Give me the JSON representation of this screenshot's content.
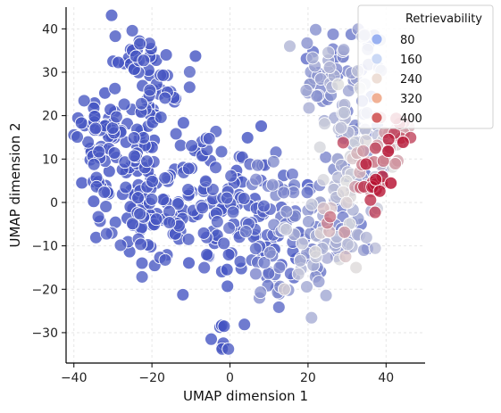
{
  "chart_data": {
    "type": "scatter",
    "xlabel": "UMAP dimension 1",
    "ylabel": "UMAP dimension 2",
    "xlim": [
      -42,
      50
    ],
    "ylim": [
      -37,
      45
    ],
    "x_ticks": [
      -40,
      -20,
      0,
      20,
      40
    ],
    "y_ticks": [
      -30,
      -20,
      -10,
      0,
      10,
      20,
      30,
      40
    ],
    "x_tick_labels": [
      "−40",
      "−20",
      "0",
      "20",
      "40"
    ],
    "y_tick_labels": [
      "−30",
      "−20",
      "−10",
      "0",
      "10",
      "20",
      "30",
      "40"
    ],
    "grid": true,
    "legend": {
      "title": "Retrievability",
      "placement": "top-right",
      "entries": [
        {
          "label": "80",
          "value": 80,
          "color": "#8fa9f0"
        },
        {
          "label": "160",
          "value": 160,
          "color": "#c5d5f5"
        },
        {
          "label": "240",
          "value": 240,
          "color": "#ecdcd3"
        },
        {
          "label": "320",
          "value": 320,
          "color": "#f0a88a"
        },
        {
          "label": "400",
          "value": 400,
          "color": "#d05454"
        }
      ]
    },
    "colormap": {
      "name": "coolwarm",
      "low_color": "#3b4cc0",
      "mid_color": "#dddddd",
      "high_color": "#b40426",
      "range": [
        0,
        480
      ]
    },
    "clusters": [
      {
        "cx": -34,
        "cy": 16,
        "sx": 3.0,
        "sy": 6.0,
        "n": 40,
        "r_mean": 10,
        "r_sd": 6
      },
      {
        "cx": -26,
        "cy": 10,
        "sx": 5.5,
        "sy": 6.5,
        "n": 70,
        "r_mean": 12,
        "r_sd": 8
      },
      {
        "cx": -24,
        "cy": 33,
        "sx": 3.0,
        "sy": 4.5,
        "n": 28,
        "r_mean": 10,
        "r_sd": 6
      },
      {
        "cx": -17,
        "cy": 25,
        "sx": 4.0,
        "sy": 5.0,
        "n": 32,
        "r_mean": 14,
        "r_sd": 8
      },
      {
        "cx": -20,
        "cy": -4,
        "sx": 6.5,
        "sy": 5.0,
        "n": 75,
        "r_mean": 14,
        "r_sd": 8
      },
      {
        "cx": -10,
        "cy": 7,
        "sx": 4.0,
        "sy": 6.0,
        "n": 30,
        "r_mean": 16,
        "r_sd": 9
      },
      {
        "cx": -3,
        "cy": -6,
        "sx": 4.0,
        "sy": 6.0,
        "n": 35,
        "r_mean": 18,
        "r_sd": 10
      },
      {
        "cx": 3,
        "cy": 8,
        "sx": 4.5,
        "sy": 5.0,
        "n": 28,
        "r_mean": 20,
        "r_sd": 12
      },
      {
        "cx": 6,
        "cy": -8,
        "sx": 4.0,
        "sy": 5.0,
        "n": 30,
        "r_mean": 30,
        "r_sd": 16
      },
      {
        "cx": 14,
        "cy": -5,
        "sx": 4.0,
        "sy": 5.5,
        "n": 26,
        "r_mean": 55,
        "r_sd": 30
      },
      {
        "cx": 13,
        "cy": 4,
        "sx": 3.5,
        "sy": 4.0,
        "n": 14,
        "r_mean": 70,
        "r_sd": 30
      },
      {
        "cx": 11,
        "cy": -19,
        "sx": 4.0,
        "sy": 3.0,
        "n": 16,
        "r_mean": 80,
        "r_sd": 40
      },
      {
        "cx": 21,
        "cy": -12,
        "sx": 5.0,
        "sy": 5.0,
        "n": 35,
        "r_mean": 140,
        "r_sd": 70
      },
      {
        "cx": 25,
        "cy": 0,
        "sx": 4.5,
        "sy": 5.0,
        "n": 32,
        "r_mean": 170,
        "r_sd": 80
      },
      {
        "cx": 23,
        "cy": 28,
        "sx": 4.0,
        "sy": 5.0,
        "n": 32,
        "r_mean": 90,
        "r_sd": 45
      },
      {
        "cx": 32,
        "cy": 33,
        "sx": 3.5,
        "sy": 4.0,
        "n": 30,
        "r_mean": 130,
        "r_sd": 50
      },
      {
        "cx": 30,
        "cy": 18,
        "sx": 4.5,
        "sy": 5.5,
        "n": 45,
        "r_mean": 130,
        "r_sd": 60
      },
      {
        "cx": 31,
        "cy": 5,
        "sx": 4.0,
        "sy": 5.0,
        "n": 30,
        "r_mean": 180,
        "r_sd": 80
      },
      {
        "cx": 38,
        "cy": 12,
        "sx": 3.0,
        "sy": 4.5,
        "n": 30,
        "r_mean": 300,
        "r_sd": 70
      },
      {
        "cx": 38,
        "cy": 4,
        "sx": 1.8,
        "sy": 2.0,
        "n": 14,
        "r_mean": 440,
        "r_sd": 30
      },
      {
        "cx": 43,
        "cy": 15,
        "sx": 2.0,
        "sy": 2.0,
        "n": 12,
        "r_mean": 360,
        "r_sd": 60
      },
      {
        "cx": 33,
        "cy": -9,
        "sx": 3.5,
        "sy": 3.5,
        "n": 18,
        "r_mean": 150,
        "r_sd": 60
      },
      {
        "cx": -2,
        "cy": -31,
        "sx": 1.0,
        "sy": 2.0,
        "n": 8,
        "r_mean": 10,
        "r_sd": 5
      }
    ]
  }
}
